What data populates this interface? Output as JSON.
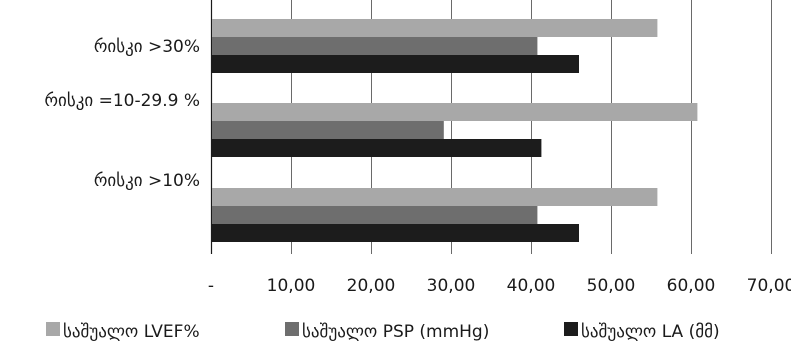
{
  "chart_data": {
    "type": "bar",
    "orientation": "horizontal",
    "categories": [
      "რისკი >30%",
      "რისკი =10-29.9 %",
      "რისკი >10%"
    ],
    "series": [
      {
        "name": "საშუალო LVEF%",
        "values": [
          55.8,
          60.8,
          55.8
        ],
        "color": "#a8a8a8"
      },
      {
        "name": "საშუალო PSP (mmHg)",
        "values": [
          40.8,
          29.1,
          40.8
        ],
        "color": "#6e6e6e"
      },
      {
        "name": "საშუალო LA (მმ)",
        "values": [
          46.0,
          41.3,
          46.0
        ],
        "color": "#1c1c1c"
      }
    ],
    "xlim": [
      0,
      70
    ],
    "x_ticks": [
      0,
      10,
      20,
      30,
      40,
      50,
      60,
      70
    ],
    "x_tick_labels": [
      "-",
      "10,00",
      "20,00",
      "30,00",
      "40,00",
      "50,00",
      "60,00",
      "70,00"
    ],
    "grid": "vertical",
    "legend_position": "bottom"
  }
}
